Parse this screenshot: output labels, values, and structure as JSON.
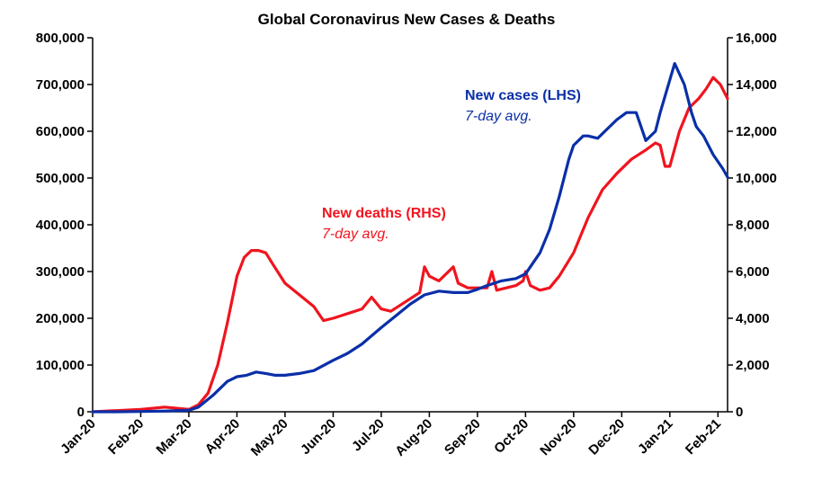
{
  "chart_data": {
    "type": "line",
    "title": "Global Coronavirus New Cases & Deaths",
    "x_tick_labels": [
      "Jan-20",
      "Feb-20",
      "Mar-20",
      "Apr-20",
      "May-20",
      "Jun-20",
      "Jul-20",
      "Aug-20",
      "Sep-20",
      "Oct-20",
      "Nov-20",
      "Dec-20",
      "Jan-21",
      "Feb-21"
    ],
    "y_left": {
      "ticks": [
        "0",
        "100,000",
        "200,000",
        "300,000",
        "400,000",
        "500,000",
        "600,000",
        "700,000",
        "800,000"
      ],
      "range": [
        0,
        800000
      ]
    },
    "y_right": {
      "ticks": [
        "0",
        "2,000",
        "4,000",
        "6,000",
        "8,000",
        "10,000",
        "12,000",
        "14,000",
        "16,000"
      ],
      "range": [
        0,
        16000
      ]
    },
    "x_range": [
      0,
      13.2
    ],
    "colors": {
      "cases": "#0a2fa8",
      "deaths": "#f0141e",
      "axis": "#000000"
    },
    "series": [
      {
        "name": "New cases (LHS)",
        "axis": "left",
        "x": [
          0,
          0.5,
          1,
          1.5,
          2,
          2.2,
          2.5,
          2.8,
          3,
          3.2,
          3.4,
          3.6,
          3.8,
          4,
          4.3,
          4.6,
          5,
          5.3,
          5.6,
          6,
          6.3,
          6.6,
          6.9,
          7.2,
          7.5,
          7.8,
          8,
          8.2,
          8.5,
          8.8,
          9,
          9.1,
          9.3,
          9.5,
          9.7,
          9.9,
          10,
          10.2,
          10.3,
          10.5,
          10.7,
          10.9,
          11.1,
          11.3,
          11.5,
          11.7,
          11.8,
          12,
          12.1,
          12.3,
          12.45,
          12.55,
          12.7,
          12.9,
          13.1,
          13.2
        ],
        "values": [
          0,
          0,
          500,
          1500,
          3000,
          10000,
          35000,
          65000,
          75000,
          78000,
          85000,
          82000,
          78000,
          78000,
          82000,
          88000,
          110000,
          125000,
          145000,
          180000,
          205000,
          230000,
          250000,
          258000,
          255000,
          255000,
          262000,
          270000,
          280000,
          285000,
          295000,
          310000,
          340000,
          390000,
          460000,
          540000,
          570000,
          590000,
          590000,
          585000,
          605000,
          625000,
          640000,
          640000,
          580000,
          600000,
          640000,
          710000,
          745000,
          700000,
          640000,
          610000,
          590000,
          550000,
          520000,
          502000
        ]
      },
      {
        "name": "New deaths (RHS)",
        "axis": "right",
        "x": [
          0,
          1,
          1.5,
          2,
          2.2,
          2.4,
          2.6,
          2.8,
          3,
          3.15,
          3.3,
          3.45,
          3.6,
          3.75,
          4,
          4.3,
          4.6,
          4.8,
          5,
          5.3,
          5.6,
          5.8,
          6,
          6.2,
          6.5,
          6.8,
          6.9,
          7,
          7.2,
          7.5,
          7.6,
          7.8,
          8,
          8.2,
          8.3,
          8.4,
          8.6,
          8.8,
          8.95,
          9,
          9.1,
          9.3,
          9.5,
          9.7,
          10,
          10.3,
          10.6,
          10.9,
          11.2,
          11.5,
          11.7,
          11.8,
          11.9,
          12,
          12.2,
          12.4,
          12.6,
          12.75,
          12.9,
          13.05,
          13.2
        ],
        "values": [
          0,
          100,
          200,
          100,
          300,
          800,
          2000,
          3800,
          5800,
          6600,
          6900,
          6900,
          6800,
          6300,
          5500,
          5000,
          4500,
          3900,
          4000,
          4200,
          4400,
          4900,
          4400,
          4300,
          4700,
          5100,
          6200,
          5800,
          5600,
          6200,
          5500,
          5300,
          5300,
          5300,
          6000,
          5200,
          5300,
          5400,
          5600,
          6000,
          5400,
          5200,
          5300,
          5800,
          6800,
          8300,
          9500,
          10200,
          10800,
          11200,
          11500,
          11400,
          10500,
          10500,
          12000,
          13000,
          13400,
          13800,
          14300,
          14000,
          13400
        ]
      }
    ],
    "annotations": [
      {
        "name": "New cases (LHS)",
        "subtitle": "7-day avg.",
        "color_key": "cases"
      },
      {
        "name": "New deaths (RHS)",
        "subtitle": "7-day avg.",
        "color_key": "deaths"
      }
    ],
    "grid": false,
    "legend": "inline annotations"
  }
}
